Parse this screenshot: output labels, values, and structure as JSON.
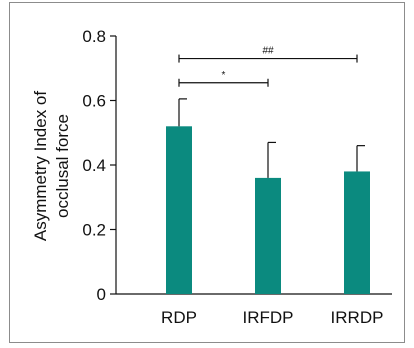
{
  "chart_data": {
    "type": "bar",
    "ylabel_lines": [
      "Asymmetry Index of",
      "occlusal force"
    ],
    "xlabel": "",
    "categories": [
      "RDP",
      "IRFDP",
      "IRRDP"
    ],
    "values": [
      0.52,
      0.36,
      0.38
    ],
    "errors": [
      0.085,
      0.11,
      0.08
    ],
    "ylim": [
      0,
      0.8
    ],
    "yticks": [
      0,
      0.2,
      0.4,
      0.6,
      0.8
    ],
    "ytick_labels": [
      "0",
      "0.2",
      "0.4",
      "0.6",
      "0.8"
    ],
    "bar_color": "#0b8a7f",
    "grid": false,
    "brackets": [
      {
        "from": 0,
        "to": 1,
        "label": "*",
        "y": 0.655
      },
      {
        "from": 0,
        "to": 2,
        "label": "##",
        "y": 0.73
      }
    ]
  }
}
